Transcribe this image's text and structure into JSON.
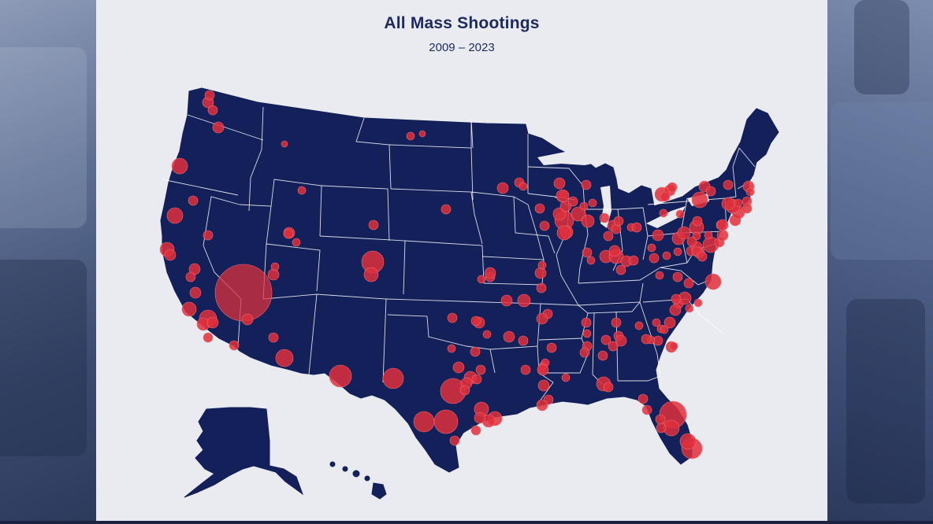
{
  "map": {
    "title": "All Mass Shootings",
    "subtitle": "2009 – 2023"
  },
  "colors": {
    "land": "#13205a",
    "borders": "#ffffff",
    "markers": "#e0303c",
    "card_background": "#e9ebf1"
  },
  "icons": {
    "markers": "red-circle-markers"
  }
}
